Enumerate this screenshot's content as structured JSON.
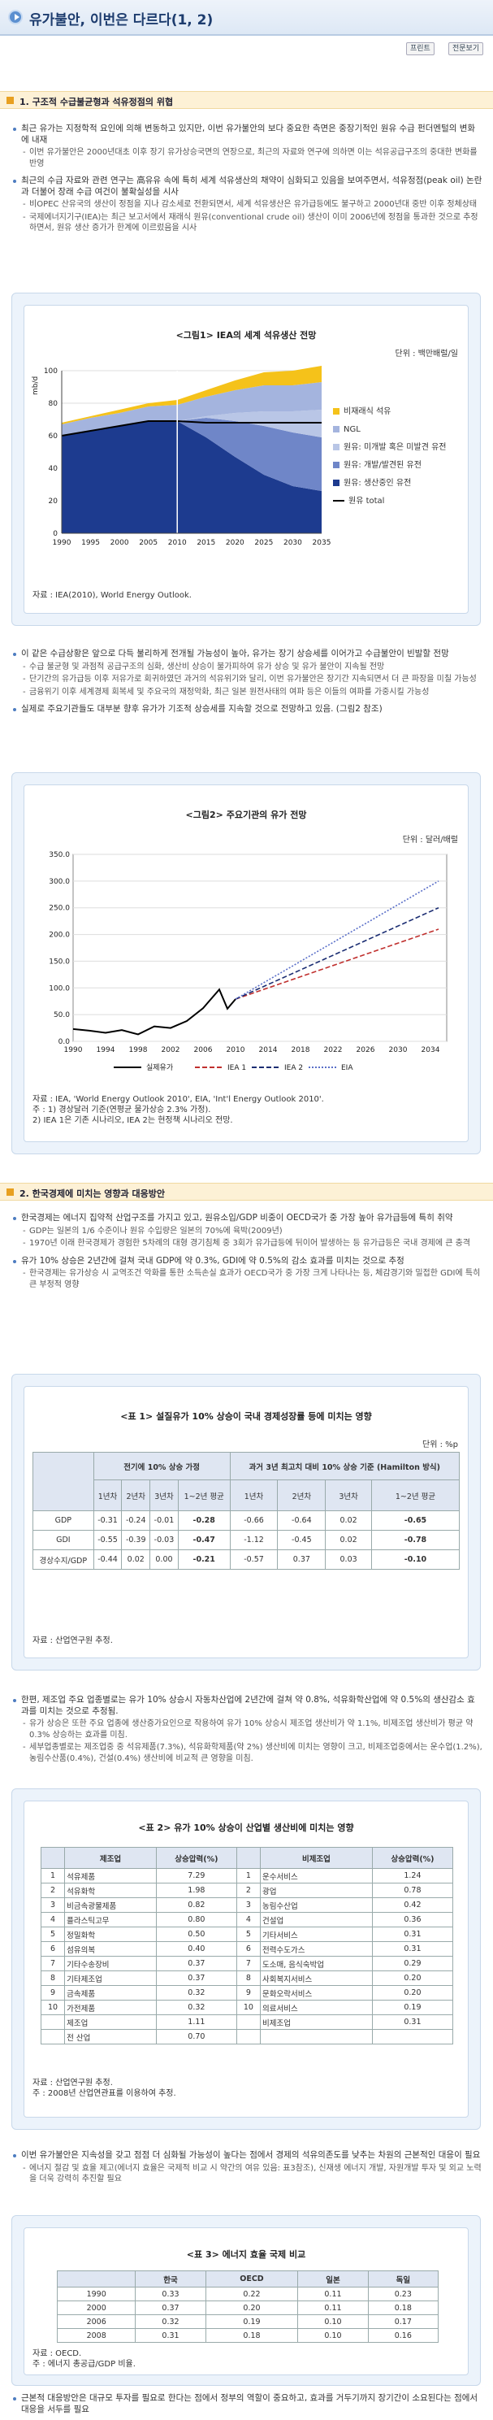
{
  "header": {
    "title": "유가불안, 이번은 다르다(1, 2)",
    "btn_print": "프린트",
    "btn_list": "전문보기"
  },
  "sec1": {
    "title": "1. 구조적 수급불균형과 석유정점의 위협",
    "p": [
      {
        "k": "b",
        "t": "최근 유가는 지정학적 요인에 의해 변동하고 있지만, 이번 유가불안의 보다 중요한 측면은 중장기적인 원유 수급 펀더멘털의 변화에 내재"
      },
      {
        "k": "d",
        "t": "이번 유가불안은 2000년대초 이후 장기 유가상승국면의 연장으로, 최근의 자료와 연구에 의하면 이는 석유공급구조의 중대한 변화를 반영"
      },
      {
        "k": "b",
        "t": "최근의 수급 자료와 관련 연구는 高유유 속에 특히 세계 석유생산의 채약이 심화되고 있음을 보여주면서, 석유정점(peak oil) 논란과 더불어 장래 수급 여건이 불확실성을 시사"
      },
      {
        "k": "d",
        "t": "비OPEC 산유국의 생산이 정점을 지나 감소세로 전환되면서, 세계 석유생산은 유가급등에도 불구하고 2000년대 중반 이후 정체상태"
      },
      {
        "k": "d",
        "t": "국제에너지기구(IEA)는 최근 보고서에서 재래식 원유(conventional crude oil) 생산이 이미 2006년에 정점을 통과한 것으로 추정하면서, 원유 생산 증가가 한계에 이르렀음을 시사"
      }
    ]
  },
  "fig1": {
    "title": "<그림1> IEA의 세계 석유생산 전망",
    "unit": "단위 : 백만배럴/일",
    "source": "자료 : IEA(2010), World Energy Outlook.",
    "chart_data": {
      "type": "area",
      "x": [
        1990,
        1995,
        2000,
        2005,
        2010,
        2015,
        2020,
        2025,
        2030,
        2035
      ],
      "xlabel": "",
      "ylabel": "mb/d",
      "ylim": [
        0,
        100
      ],
      "series": [
        {
          "name": "원유: 생산중인 유전",
          "values": [
            60,
            63,
            66,
            69,
            69,
            59,
            47,
            36,
            29,
            26
          ]
        },
        {
          "name": "원유: 개발/발견된 유전",
          "values": [
            0,
            0,
            0,
            0,
            0,
            12,
            22,
            30,
            33,
            33
          ]
        },
        {
          "name": "원유: 미개발 혹은 미발견 유전",
          "values": [
            0,
            0,
            0,
            0,
            0,
            1,
            5,
            9,
            13,
            17
          ]
        },
        {
          "name": "NGL",
          "values": [
            7,
            8,
            8,
            9,
            10,
            12,
            14,
            16,
            16,
            17
          ]
        },
        {
          "name": "비재래식 석유",
          "values": [
            1,
            1,
            2,
            2,
            3,
            4,
            6,
            8,
            9,
            10
          ]
        }
      ],
      "line": {
        "name": "원유 total",
        "values": [
          60,
          63,
          66,
          69,
          69,
          68,
          68,
          68,
          68,
          68
        ]
      },
      "colors": [
        "#1d3b8f",
        "#6f86c8",
        "#b9c6e6",
        "#a4b4de",
        "#f5c21a"
      ]
    }
  },
  "p2": [
    {
      "k": "b",
      "t": "이 같은 수급상황은 앞으로 다득 불리하게 전개될 가능성이 높아, 유가는 장기 상승세를 이어가고 수급불안이 빈발할 전망"
    },
    {
      "k": "d",
      "t": "수급 불균형 및 과점적 공급구조의 심화, 생산비 상승이 불가피하여 유가 상승 및 유가 불안이 지속될 전망"
    },
    {
      "k": "d",
      "t": "단기간의 유가급등 이후 저유가로 회귀하였던 과거의 석유위기와 달리, 이번 유가불안은 장기간 지속되면서 더 큰 파장을 미칠 가능성"
    },
    {
      "k": "d",
      "t": "금융위기 이후 세계경제 회복세 및 주요국의 재정악화, 최근 일본 원전사태의 여파 등은 이들의 여파를 가중시킬 가능성"
    },
    {
      "k": "b",
      "t": "실제로 주요기관들도 대부분 향후 유가가 기조적 상승세를 지속할 것으로 전망하고 있음. (그림2 참조)"
    }
  ],
  "fig2": {
    "title": "<그림2> 주요기관의 유가 전망",
    "unit": "단위 : 달러/배럴",
    "notes": [
      "자료 : IEA, 'World Energy Outlook 2010', EIA, 'Int'l Energy Outlook 2010'.",
      "주   : 1) 경상달러 기준(연평균 물가상승 2.3% 가정).",
      "        2) IEA 1은 기존 시나리오, IEA 2는 현정책 시나리오 전망."
    ],
    "chart_data": {
      "type": "line",
      "x": [
        1990,
        1994,
        1998,
        2002,
        2006,
        2010,
        2014,
        2018,
        2022,
        2026,
        2030,
        2034
      ],
      "ylim": [
        0,
        350
      ],
      "yticks": [
        "0.0",
        "50.0",
        "100.0",
        "150.0",
        "200.0",
        "250.0",
        "300.0",
        "350.0"
      ],
      "xticks": [
        "1990",
        "1994",
        "1998",
        "2002",
        "2006",
        "2010",
        "2014",
        "2018",
        "2022",
        "2026",
        "2030",
        "2034"
      ],
      "series": [
        {
          "name": "실제유가",
          "color": "#000000",
          "points": [
            [
              1990,
              23
            ],
            [
              1992,
              20
            ],
            [
              1994,
              16
            ],
            [
              1996,
              21
            ],
            [
              1998,
              13
            ],
            [
              2000,
              28
            ],
            [
              2002,
              25
            ],
            [
              2004,
              38
            ],
            [
              2006,
              62
            ],
            [
              2008,
              97
            ],
            [
              2009,
              61
            ],
            [
              2010,
              79
            ]
          ]
        },
        {
          "name": "IEA 1",
          "color": "#c0302e",
          "points": [
            [
              2010,
              79
            ],
            [
              2035,
              210
            ]
          ]
        },
        {
          "name": "IEA 2",
          "color": "#1b2d72",
          "points": [
            [
              2010,
              79
            ],
            [
              2035,
              250
            ]
          ]
        },
        {
          "name": "EIA",
          "color": "#5a6fc8",
          "points": [
            [
              2010,
              79
            ],
            [
              2035,
              300
            ]
          ]
        }
      ]
    }
  },
  "sec2": {
    "title": "2. 한국경제에 미치는 영향과 대응방안",
    "p": [
      {
        "k": "b",
        "t": "한국경제는 에너지 집약적 산업구조를 가지고 있고, 원유소입/GDP 비중이 OECD국가 중 가장 높아 유가급등에 특히 취약"
      },
      {
        "k": "d",
        "t": "GDP는 일본의 1/6 수준이나 원유 수입량은 일본의 70%에 육박(2009년)"
      },
      {
        "k": "d",
        "t": "1970년 이래 한국경제가 경험한 5차례의 대형 경기침체 중 3회가 유가급등에 뒤이어 발생하는 등 유가급등은 국내 경제에 큰 충격"
      },
      {
        "k": "b",
        "t": "유가 10% 상승은 2년간에 걸쳐 국내 GDP에 약 0.3%, GDI에 약 0.5%의 감소 효과를 미치는 것으로 추정"
      },
      {
        "k": "d",
        "t": "한국경제는 유가상승 시 교역조건 악화를 통한 소득손실 효과가 OECD국가 중 가장 크게 나타나는 등, 체감경기와 밀접한 GDI에 특히 큰 부정적 영향"
      }
    ]
  },
  "tab1": {
    "title": "<표 1> 설질유가 10% 상승이 국내 경제성장률 등에 미치는 영향",
    "unit": "단위 : %p",
    "h1": "전기에 10% 상승 가정",
    "h2": "과거 3년 최고치 대비 10% 상승 기준 (Hamilton 방식)",
    "sub": [
      "1년차",
      "2년차",
      "3년차",
      "1~2년 평균",
      "1년차",
      "2년차",
      "3년차",
      "1~2년 평균"
    ],
    "rows": [
      {
        "l": "GDP",
        "v": [
          "-0.31",
          "-0.24",
          "-0.01",
          "-0.28",
          "-0.66",
          "-0.64",
          "0.02",
          "-0.65"
        ]
      },
      {
        "l": "GDI",
        "v": [
          "-0.55",
          "-0.39",
          "-0.03",
          "-0.47",
          "-1.12",
          "-0.45",
          "0.02",
          "-0.78"
        ]
      },
      {
        "l": "경상수지/GDP",
        "v": [
          "-0.44",
          "0.02",
          "0.00",
          "-0.21",
          "-0.57",
          "0.37",
          "0.03",
          "-0.10"
        ]
      }
    ],
    "source": "자료 : 산업연구원 추정."
  },
  "p3": [
    {
      "k": "b",
      "t": "한편, 제조업 주요 업종별로는 유가 10% 상승시 자동차산업에 2년간에 걸쳐 약 0.8%, 석유화학산업에 약 0.5%의 생산감소 효과를 미치는 것으로 추정됨."
    },
    {
      "k": "d",
      "t": "유가 상승은 또한 주요 업종에 생산증가요인으로 작용하여 유가 10% 상승시 제조업 생산비가 약 1.1%, 비제조업 생산비가 평균 약 0.3% 상승하는 효과를 미침."
    },
    {
      "k": "d",
      "t": "세부업종별로는 제조업중 중 석유제품(7.3%), 석유화학제품(약 2%) 생산비에 미치는 영향이 크고, 비제조업중에서는 운수업(1.2%), 농림수산품(0.4%), 건설(0.4%) 생산비에 비교적 큰 영향을 미침."
    }
  ],
  "tab2": {
    "title": "<표 2> 유가 10% 상승이 산업별 생산비에 미치는 영향",
    "h": [
      "",
      "제조업",
      "상승압력(%)",
      "",
      "비제조업",
      "상승압력(%)"
    ],
    "rows": [
      [
        "1",
        "석유제품",
        "7.29",
        "1",
        "운수서비스",
        "1.24"
      ],
      [
        "2",
        "석유화학",
        "1.98",
        "2",
        "광업",
        "0.78"
      ],
      [
        "3",
        "비금속광물제품",
        "0.82",
        "3",
        "농림수산업",
        "0.42"
      ],
      [
        "4",
        "플라스틱고무",
        "0.80",
        "4",
        "건설업",
        "0.36"
      ],
      [
        "5",
        "정밀화학",
        "0.50",
        "5",
        "기타서비스",
        "0.31"
      ],
      [
        "6",
        "섬유의복",
        "0.40",
        "6",
        "전력수도가스",
        "0.31"
      ],
      [
        "7",
        "기타수송장비",
        "0.37",
        "7",
        "도소매, 음식숙박업",
        "0.29"
      ],
      [
        "8",
        "기타제조업",
        "0.37",
        "8",
        "사회복지서비스",
        "0.20"
      ],
      [
        "9",
        "금속제품",
        "0.32",
        "9",
        "문화오락서비스",
        "0.20"
      ],
      [
        "10",
        "가전제품",
        "0.32",
        "10",
        "의료서비스",
        "0.19"
      ],
      [
        "",
        "제조업",
        "1.11",
        "",
        "비제조업",
        "0.31"
      ],
      [
        "",
        "전 산업",
        "0.70",
        "",
        "",
        ""
      ]
    ],
    "notes": [
      "자료 : 산업연구원 추정.",
      "주   : 2008년 산업연관표를 이용하여 추정."
    ]
  },
  "p4": [
    {
      "k": "b",
      "t": "이번 유가불안은 지속성을 갖고 점점 더 심화될 가능성이 높다는 점에서 경제의 석유의존도를 낮추는 차원의 근본적인 대응이 필요"
    },
    {
      "k": "d",
      "t": "에너지 절감 및 효율 제고(에너지 효율은 국제적 비교 시 약간의 여유 있음: 표3참조), 신재생 에너지 개발, 자원개발 투자 및 외교 노력을 더욱 강력히 추진할 필요"
    }
  ],
  "tab3": {
    "title": "<표 3> 에너지 효율 국제 비교",
    "h": [
      "",
      "한국",
      "OECD",
      "일본",
      "독일"
    ],
    "rows": [
      [
        "1990",
        "0.33",
        "0.22",
        "0.11",
        "0.23"
      ],
      [
        "2000",
        "0.37",
        "0.20",
        "0.11",
        "0.18"
      ],
      [
        "2006",
        "0.32",
        "0.19",
        "0.10",
        "0.17"
      ],
      [
        "2008",
        "0.31",
        "0.18",
        "0.10",
        "0.16"
      ]
    ],
    "notes": [
      "자료 : OECD.",
      "주   : 에너지 총공급/GDP 비율."
    ]
  },
  "p5": [
    {
      "k": "b",
      "t": "근본적 대응방안은 대규모 투자를 필요로 한다는 점에서 정부의 역할이 중요하고, 효과를 거두기까지 장기간이 소요된다는 점에서 대응을 서두를 필요"
    }
  ]
}
